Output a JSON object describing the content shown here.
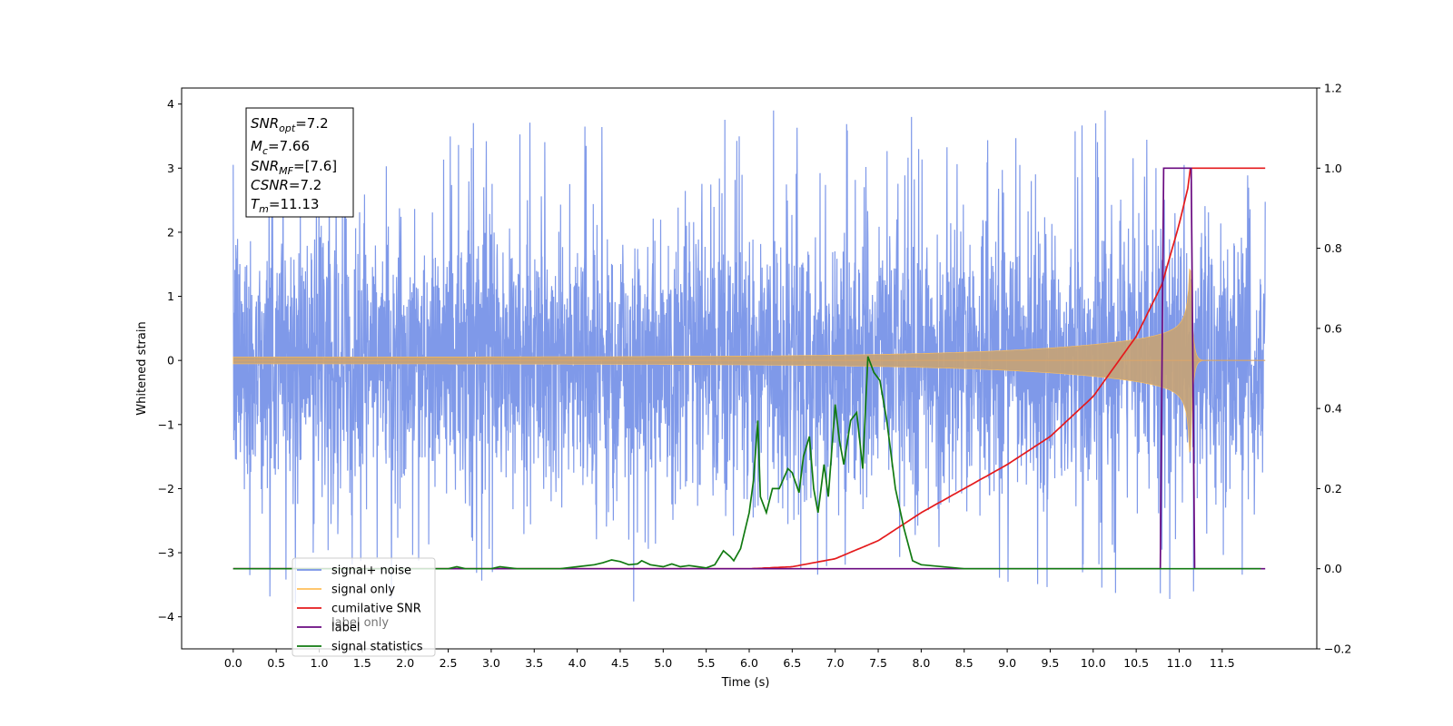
{
  "chart_data": {
    "type": "line",
    "xlabel": "Time (s)",
    "ylabel": "Whitened strain",
    "xlim": [
      -0.6,
      12.6
    ],
    "ylim": [
      -4.5,
      4.25
    ],
    "ylim_right": [
      -0.2,
      1.2
    ],
    "x_ticks": [
      "0.0",
      "0.5",
      "1.0",
      "1.5",
      "2.0",
      "2.5",
      "3.0",
      "3.5",
      "4.0",
      "4.5",
      "5.0",
      "5.5",
      "6.0",
      "6.5",
      "7.0",
      "7.5",
      "8.0",
      "8.5",
      "9.0",
      "9.5",
      "10.0",
      "10.5",
      "11.0",
      "11.5"
    ],
    "y_ticks_left": [
      "4",
      "3",
      "2",
      "1",
      "0",
      "−1",
      "−2",
      "−3",
      "−4"
    ],
    "y_ticks_right": [
      "1.2",
      "1.0",
      "0.8",
      "0.6",
      "0.4",
      "0.2",
      "0.0",
      "−0.2"
    ],
    "grid": false,
    "legend_position": "lower-left",
    "annotation": {
      "snr_opt": {
        "base": "SNR",
        "sub": "opt",
        "value": "=7.2"
      },
      "mc": {
        "base": "M",
        "sub": "c",
        "value": "=7.66"
      },
      "snr_mf": {
        "base": "SNR",
        "sub": "MF",
        "value": "=[7.6]"
      },
      "csnr": {
        "base": "CSNR",
        "value": "=7.2"
      },
      "tm": {
        "base": "T",
        "sub": "m",
        "value": "=11.13"
      }
    },
    "series": [
      {
        "name": "signal+ noise",
        "color": "#7893e8",
        "axis": "left",
        "x_range": [
          0.0,
          12.0
        ],
        "noise_std": 1.0,
        "noise_extent": [
          -4.1,
          3.9
        ]
      },
      {
        "name": "signal only",
        "color": "#ffbf59",
        "axis": "left",
        "x_range": [
          0.0,
          12.0
        ],
        "merger_time": 11.13,
        "peak_amplitude": 1.6
      },
      {
        "name": "cumilative SNR",
        "color": "#e41a1c",
        "axis": "right",
        "x": [
          0.0,
          5.5,
          6.0,
          6.5,
          7.0,
          7.5,
          8.0,
          8.5,
          9.0,
          9.5,
          10.0,
          10.5,
          10.8,
          11.0,
          11.1,
          11.13,
          11.5,
          12.0
        ],
        "y": [
          0.0,
          0.0,
          0.0,
          0.005,
          0.025,
          0.07,
          0.14,
          0.2,
          0.26,
          0.33,
          0.43,
          0.58,
          0.71,
          0.86,
          0.95,
          1.0,
          1.0,
          1.0
        ]
      },
      {
        "name": "label",
        "color": "#6a0a80",
        "axis": "right",
        "x": [
          0.0,
          10.78,
          10.82,
          11.14,
          11.18,
          12.0
        ],
        "y": [
          0.0,
          0.0,
          1.0,
          1.0,
          0.0,
          0.0
        ]
      },
      {
        "name": "signal statistics",
        "color": "#117a11",
        "axis": "right",
        "x": [
          0.0,
          2.5,
          2.6,
          2.7,
          3.0,
          3.1,
          3.3,
          3.5,
          3.8,
          4.0,
          4.2,
          4.3,
          4.4,
          4.5,
          4.6,
          4.7,
          4.75,
          4.85,
          5.0,
          5.1,
          5.2,
          5.3,
          5.4,
          5.5,
          5.6,
          5.7,
          5.78,
          5.82,
          5.9,
          6.0,
          6.05,
          6.1,
          6.13,
          6.2,
          6.27,
          6.35,
          6.45,
          6.5,
          6.58,
          6.63,
          6.7,
          6.75,
          6.8,
          6.87,
          6.92,
          7.0,
          7.05,
          7.1,
          7.18,
          7.25,
          7.32,
          7.38,
          7.45,
          7.52,
          7.6,
          7.7,
          7.8,
          7.9,
          8.0,
          8.5,
          9.0,
          10.0,
          11.0,
          11.95
        ],
        "y": [
          0.0,
          0.0,
          0.005,
          0.0,
          0.0,
          0.005,
          0.0,
          0.0,
          0.0,
          0.005,
          0.01,
          0.015,
          0.022,
          0.018,
          0.01,
          0.012,
          0.02,
          0.01,
          0.005,
          0.012,
          0.005,
          0.008,
          0.005,
          0.002,
          0.01,
          0.045,
          0.03,
          0.02,
          0.05,
          0.14,
          0.22,
          0.37,
          0.18,
          0.14,
          0.2,
          0.2,
          0.25,
          0.24,
          0.19,
          0.28,
          0.33,
          0.2,
          0.14,
          0.26,
          0.18,
          0.41,
          0.32,
          0.26,
          0.37,
          0.39,
          0.25,
          0.53,
          0.49,
          0.47,
          0.37,
          0.2,
          0.1,
          0.02,
          0.01,
          0.0,
          0.0,
          0.0,
          0.0,
          0.0
        ]
      }
    ]
  },
  "legend": {
    "items": [
      {
        "label": "signal+ noise",
        "color": "#7893e8"
      },
      {
        "label": "signal only",
        "color": "#ffbf59"
      },
      {
        "label": "cumilative SNR",
        "color": "#e41a1c"
      },
      {
        "label": "label",
        "color": "#6a0a80"
      },
      {
        "label": "signal statistics",
        "color": "#117a11"
      }
    ],
    "hidden_label": "label only"
  }
}
